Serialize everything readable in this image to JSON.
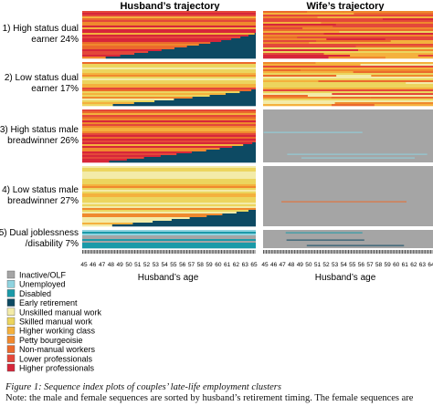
{
  "chart_data": {
    "type": "sequence-index-plot",
    "column_titles": [
      "Husband’s trajectory",
      "Wife’s trajectory"
    ],
    "panels": [
      {
        "label": "1) High status dual earner 24%",
        "label_lines": [
          "1) High status dual",
          "earner 24%"
        ]
      },
      {
        "label": "2) Low status dual earner 17%",
        "label_lines": [
          "2) Low status dual",
          "earner 17%"
        ]
      },
      {
        "label": "3) High status male breadwinner 26%",
        "label_lines": [
          "3) High status male",
          "breadwinner 26%"
        ]
      },
      {
        "label": "4) Low status male breadwinner 27%",
        "label_lines": [
          "4) Low status male",
          "breadwinner 27%"
        ]
      },
      {
        "label": "5) Dual joblessness /disability 7%",
        "label_lines": [
          "5) Dual joblessness",
          "/disability 7%"
        ]
      }
    ],
    "x_axis": {
      "label": "Husband’s age",
      "range": [
        45,
        65
      ],
      "husband_ticks": [
        "45",
        "46",
        "47",
        "48",
        "49",
        "50",
        "51",
        "52",
        "53",
        "54",
        "55",
        "56",
        "57",
        "58",
        "59",
        "60",
        "61",
        "62",
        "63",
        "65"
      ],
      "wife_ticks": [
        "45",
        "46",
        "47",
        "48",
        "49",
        "50",
        "51",
        "52",
        "53",
        "54",
        "55",
        "56",
        "57",
        "58",
        "59",
        "60",
        "61",
        "62",
        "63",
        "64"
      ]
    },
    "states": [
      {
        "name": "Inactive/OLF",
        "color": "#a5a5a5"
      },
      {
        "name": "Unemployed",
        "color": "#8fd3df"
      },
      {
        "name": "Disabled",
        "color": "#1b9aa8"
      },
      {
        "name": "Early retirement",
        "color": "#0d4a63"
      },
      {
        "name": "Unskilled manual work",
        "color": "#f3eba8"
      },
      {
        "name": "Skilled manual work",
        "color": "#ecd55e"
      },
      {
        "name": "Higher working class",
        "color": "#f4b13d"
      },
      {
        "name": "Petty bourgeoisie",
        "color": "#f0892e"
      },
      {
        "name": "Non-manual workers",
        "color": "#eb6a2c"
      },
      {
        "name": "Lower professionals",
        "color": "#e4473a"
      },
      {
        "name": "Higher professionals",
        "color": "#d7263a"
      }
    ]
  },
  "caption": {
    "title": "Figure 1: Sequence index plots of couples’ late-life employment clusters",
    "note": "Note: the male and female sequences are sorted by husband’s retirement timing. The female sequences are"
  }
}
